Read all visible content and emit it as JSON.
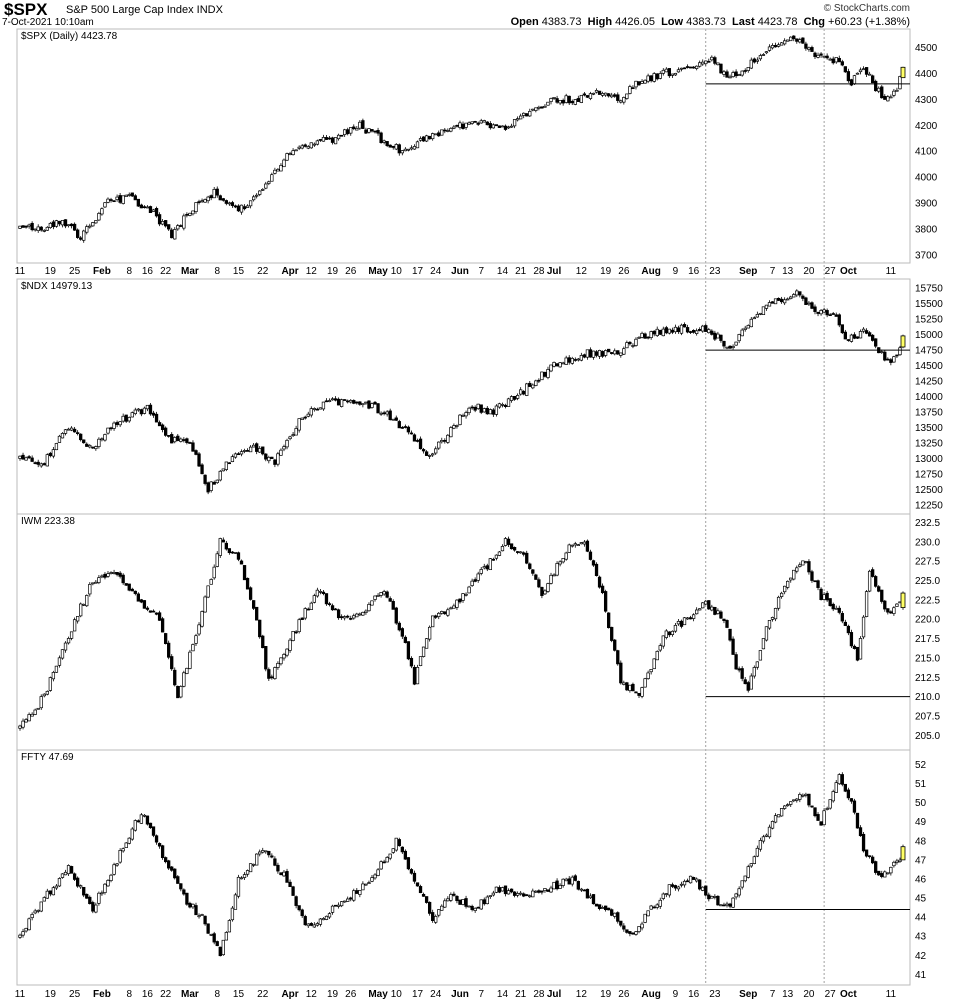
{
  "header": {
    "symbol": "$SPX",
    "name": "S&P 500 Large Cap Index INDX",
    "datetime": "7-Oct-2021 10:10am",
    "brand": "© StockCharts.com",
    "open_label": "Open",
    "open": "4383.73",
    "high_label": "High",
    "high": "4426.05",
    "low_label": "Low",
    "low": "4383.73",
    "last_label": "Last",
    "last": "4423.78",
    "chg_label": "Chg",
    "chg": "+60.23 (+1.38%)"
  },
  "colors": {
    "up_candle": "#ffffff",
    "down_candle": "#000000",
    "last_bar": "#ffff66",
    "hline": "#000000",
    "vline": "#888888",
    "panel_border": "#bbbbbb"
  },
  "x_axis": {
    "top": [
      "11",
      "19",
      "25",
      "Feb",
      "8",
      "16",
      "22",
      "Mar",
      "8",
      "15",
      "22",
      "Apr",
      "12",
      "19",
      "26",
      "May",
      "10",
      "17",
      "24",
      "Jun",
      "7",
      "14",
      "21",
      "28",
      "Jul",
      "12",
      "19",
      "26",
      "Aug",
      "9",
      "16",
      "23",
      "Sep",
      "7",
      "13",
      "20",
      "27",
      "Oct",
      "11"
    ],
    "bottom": [
      "11",
      "19",
      "25",
      "Feb",
      "8",
      "16",
      "22",
      "Mar",
      "8",
      "15",
      "22",
      "Apr",
      "12",
      "19",
      "26",
      "May",
      "10",
      "17",
      "24",
      "Jun",
      "7",
      "14",
      "21",
      "28",
      "Jul",
      "12",
      "19",
      "26",
      "Aug",
      "9",
      "16",
      "23",
      "Sep",
      "7",
      "13",
      "20",
      "27",
      "Oct",
      "11"
    ],
    "bold": [
      "Feb",
      "Mar",
      "Apr",
      "May",
      "Jun",
      "Jul",
      "Aug",
      "Sep",
      "Oct"
    ]
  },
  "chart_data": [
    {
      "type": "candlestick",
      "label": "$SPX (Daily) 4423.78",
      "y_ticks": [
        "3700",
        "3800",
        "3900",
        "4000",
        "4100",
        "4200",
        "4300",
        "4400",
        "4500"
      ],
      "ylim": [
        3680,
        4560
      ],
      "hline": 4360,
      "anchors": [
        [
          0,
          3800
        ],
        [
          8,
          3800
        ],
        [
          14,
          3840
        ],
        [
          20,
          3760
        ],
        [
          28,
          3900
        ],
        [
          36,
          3920
        ],
        [
          44,
          3860
        ],
        [
          50,
          3780
        ],
        [
          58,
          3890
        ],
        [
          64,
          3940
        ],
        [
          72,
          3870
        ],
        [
          80,
          3960
        ],
        [
          88,
          4080
        ],
        [
          96,
          4130
        ],
        [
          104,
          4150
        ],
        [
          112,
          4200
        ],
        [
          120,
          4140
        ],
        [
          126,
          4100
        ],
        [
          134,
          4150
        ],
        [
          142,
          4180
        ],
        [
          150,
          4220
        ],
        [
          158,
          4180
        ],
        [
          166,
          4240
        ],
        [
          176,
          4300
        ],
        [
          184,
          4300
        ],
        [
          192,
          4330
        ],
        [
          198,
          4300
        ],
        [
          204,
          4370
        ],
        [
          212,
          4400
        ],
        [
          220,
          4420
        ],
        [
          228,
          4450
        ],
        [
          234,
          4380
        ],
        [
          240,
          4430
        ],
        [
          246,
          4480
        ],
        [
          252,
          4530
        ],
        [
          258,
          4520
        ],
        [
          264,
          4460
        ],
        [
          270,
          4450
        ],
        [
          274,
          4360
        ],
        [
          278,
          4430
        ],
        [
          282,
          4340
        ],
        [
          286,
          4300
        ],
        [
          289,
          4330
        ],
        [
          290,
          4400
        ]
      ],
      "last": {
        "open": 4383.73,
        "high": 4426.05,
        "low": 4383.73,
        "close": 4423.78
      }
    },
    {
      "type": "candlestick",
      "label": "$NDX 14979.13",
      "y_ticks": [
        "12250",
        "12500",
        "12750",
        "13000",
        "13250",
        "13500",
        "13750",
        "14000",
        "14250",
        "14500",
        "14750",
        "15000",
        "15250",
        "15500",
        "15750"
      ],
      "ylim": [
        12150,
        15850
      ],
      "hline": 14750,
      "anchors": [
        [
          0,
          13000
        ],
        [
          8,
          12950
        ],
        [
          16,
          13500
        ],
        [
          24,
          13150
        ],
        [
          32,
          13600
        ],
        [
          42,
          13800
        ],
        [
          50,
          13300
        ],
        [
          56,
          13300
        ],
        [
          62,
          12500
        ],
        [
          68,
          12900
        ],
        [
          76,
          13200
        ],
        [
          84,
          12950
        ],
        [
          92,
          13600
        ],
        [
          100,
          13900
        ],
        [
          108,
          13900
        ],
        [
          116,
          13850
        ],
        [
          124,
          13600
        ],
        [
          130,
          13300
        ],
        [
          134,
          13000
        ],
        [
          140,
          13300
        ],
        [
          148,
          13850
        ],
        [
          156,
          13750
        ],
        [
          166,
          14100
        ],
        [
          176,
          14500
        ],
        [
          186,
          14700
        ],
        [
          196,
          14700
        ],
        [
          206,
          15000
        ],
        [
          216,
          15100
        ],
        [
          226,
          15100
        ],
        [
          234,
          14800
        ],
        [
          240,
          15200
        ],
        [
          248,
          15500
        ],
        [
          256,
          15650
        ],
        [
          262,
          15400
        ],
        [
          268,
          15350
        ],
        [
          272,
          14900
        ],
        [
          278,
          15050
        ],
        [
          282,
          14800
        ],
        [
          287,
          14500
        ],
        [
          290,
          14750
        ]
      ],
      "last": {
        "open": 14800,
        "high": 15000,
        "low": 14780,
        "close": 14979.13
      }
    },
    {
      "type": "candlestick",
      "label": "IWM 223.38",
      "y_ticks": [
        "205.0",
        "207.5",
        "210.0",
        "212.5",
        "215.0",
        "217.5",
        "220.0",
        "222.5",
        "225.0",
        "227.5",
        "230.0",
        "232.5"
      ],
      "ylim": [
        203.5,
        233.2
      ],
      "hline": 210.0,
      "anchors": [
        [
          0,
          206
        ],
        [
          8,
          210
        ],
        [
          16,
          218
        ],
        [
          24,
          225
        ],
        [
          32,
          226
        ],
        [
          40,
          222
        ],
        [
          46,
          220
        ],
        [
          52,
          210
        ],
        [
          58,
          218
        ],
        [
          66,
          230
        ],
        [
          72,
          228
        ],
        [
          78,
          220
        ],
        [
          82,
          212
        ],
        [
          90,
          218
        ],
        [
          98,
          224
        ],
        [
          106,
          220
        ],
        [
          114,
          221
        ],
        [
          120,
          224
        ],
        [
          126,
          218
        ],
        [
          130,
          212
        ],
        [
          136,
          220
        ],
        [
          144,
          222
        ],
        [
          152,
          226
        ],
        [
          160,
          230
        ],
        [
          166,
          228
        ],
        [
          172,
          223
        ],
        [
          180,
          229
        ],
        [
          186,
          230
        ],
        [
          192,
          223
        ],
        [
          198,
          212
        ],
        [
          204,
          210
        ],
        [
          212,
          218
        ],
        [
          220,
          220
        ],
        [
          226,
          222
        ],
        [
          232,
          220
        ],
        [
          236,
          214
        ],
        [
          240,
          211
        ],
        [
          246,
          219
        ],
        [
          252,
          224
        ],
        [
          258,
          228
        ],
        [
          264,
          223
        ],
        [
          270,
          221
        ],
        [
          276,
          215
        ],
        [
          280,
          226
        ],
        [
          286,
          221
        ],
        [
          290,
          222
        ]
      ],
      "last": {
        "open": 221.5,
        "high": 223.6,
        "low": 221.2,
        "close": 223.38
      }
    },
    {
      "type": "candlestick",
      "label": "FFTY 47.69",
      "y_ticks": [
        "41",
        "42",
        "43",
        "44",
        "45",
        "46",
        "47",
        "48",
        "49",
        "50",
        "51",
        "52"
      ],
      "ylim": [
        40.6,
        52.6
      ],
      "hline": 44.4,
      "anchors": [
        [
          0,
          43
        ],
        [
          8,
          45
        ],
        [
          16,
          46.5
        ],
        [
          24,
          44.5
        ],
        [
          32,
          47
        ],
        [
          40,
          49.5
        ],
        [
          48,
          47
        ],
        [
          54,
          45
        ],
        [
          60,
          44
        ],
        [
          66,
          42
        ],
        [
          72,
          46
        ],
        [
          80,
          47.5
        ],
        [
          88,
          46
        ],
        [
          94,
          43.5
        ],
        [
          100,
          44
        ],
        [
          108,
          45
        ],
        [
          116,
          46
        ],
        [
          124,
          48
        ],
        [
          130,
          46
        ],
        [
          136,
          44
        ],
        [
          142,
          45
        ],
        [
          150,
          44.5
        ],
        [
          158,
          45.5
        ],
        [
          166,
          45
        ],
        [
          174,
          45.5
        ],
        [
          182,
          46
        ],
        [
          188,
          45
        ],
        [
          196,
          44
        ],
        [
          202,
          43
        ],
        [
          208,
          44.5
        ],
        [
          214,
          45.5
        ],
        [
          222,
          46
        ],
        [
          228,
          45
        ],
        [
          234,
          44.5
        ],
        [
          240,
          46.5
        ],
        [
          246,
          48.5
        ],
        [
          252,
          50
        ],
        [
          258,
          50.5
        ],
        [
          264,
          49
        ],
        [
          270,
          51.5
        ],
        [
          274,
          50
        ],
        [
          278,
          47.5
        ],
        [
          284,
          46
        ],
        [
          290,
          47
        ]
      ],
      "last": {
        "open": 47.0,
        "high": 47.8,
        "low": 47.0,
        "close": 47.69
      }
    }
  ]
}
